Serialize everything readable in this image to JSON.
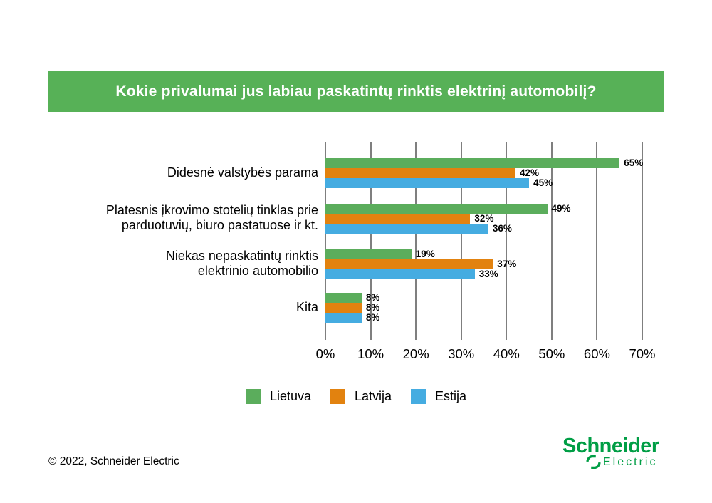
{
  "title": "Kokie privalumai jus labiau paskatintų rinktis elektrinį automobilį?",
  "colors": {
    "banner_green": "#57B157",
    "gridline_gray": "#7F7F7F",
    "logo_green": "#009E45",
    "value_label": "#000000"
  },
  "chart_data": {
    "type": "bar",
    "orientation": "horizontal",
    "title": "Kokie privalumai jus labiau paskatintų rinktis elektrinį automobilį?",
    "categories": [
      "Didesnė valstybės parama",
      "Platesnis įkrovimo stotelių tinklas prie parduotuvių, biuro pastatuose ir kt.",
      "Niekas nepaskatintų rinktis elektrinio automobilio",
      "Kita"
    ],
    "category_lines": [
      [
        "Didesnė valstybės parama"
      ],
      [
        "Platesnis įkrovimo stotelių tinklas prie",
        "parduotuvių, biuro pastatuose ir kt."
      ],
      [
        "Niekas nepaskatintų rinktis",
        "elektrinio automobilio"
      ],
      [
        "Kita"
      ]
    ],
    "series": [
      {
        "name": "Lietuva",
        "color": "#5BAD5C",
        "values": [
          65,
          49,
          19,
          8
        ]
      },
      {
        "name": "Latvija",
        "color": "#E2820F",
        "values": [
          42,
          32,
          37,
          8
        ]
      },
      {
        "name": "Estija",
        "color": "#45ACE1",
        "values": [
          45,
          36,
          33,
          8
        ]
      }
    ],
    "value_suffix": "%",
    "xlim": [
      0,
      70
    ],
    "x_ticks": [
      "0%",
      "10%",
      "20%",
      "30%",
      "40%",
      "50%",
      "60%",
      "70%"
    ],
    "grid": "vertical",
    "legend_position": "bottom"
  },
  "legend": {
    "items": [
      {
        "label": "Lietuva",
        "color": "#5BAD5C"
      },
      {
        "label": "Latvija",
        "color": "#E2820F"
      },
      {
        "label": "Estija",
        "color": "#45ACE1"
      }
    ]
  },
  "footer": {
    "copyright": "© 2022, Schneider Electric"
  },
  "logo": {
    "line1": "Schneider",
    "line2": "Electric"
  }
}
